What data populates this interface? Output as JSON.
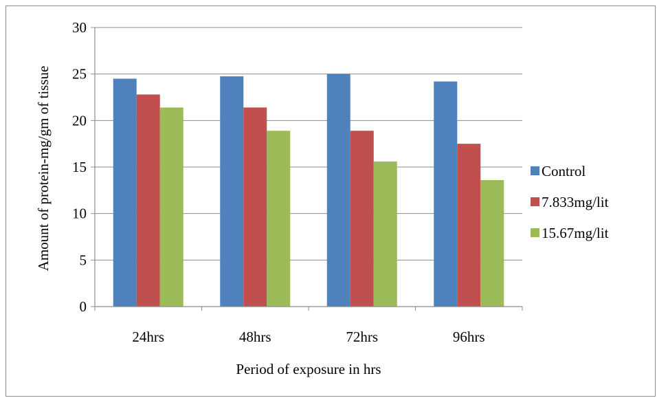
{
  "chart_data": {
    "type": "bar",
    "categories": [
      "24hrs",
      "48hrs",
      "72hrs",
      "96hrs"
    ],
    "series": [
      {
        "name": "Control",
        "color": "#4f81bd",
        "values": [
          24.5,
          24.75,
          25.0,
          24.2
        ]
      },
      {
        "name": "7.833mg/lit",
        "color": "#c0504d",
        "values": [
          22.8,
          21.4,
          18.9,
          17.5
        ]
      },
      {
        "name": "15.67mg/lit",
        "color": "#9bbb59",
        "values": [
          21.4,
          18.9,
          15.6,
          13.6
        ]
      }
    ],
    "xlabel": "Period of exposure in hrs",
    "ylabel": "Amount of protein-mg/gm of tissue",
    "ylim": [
      0,
      30
    ],
    "yticks": [
      0,
      5,
      10,
      15,
      20,
      25,
      30
    ],
    "grid": true,
    "legend_position": "right"
  }
}
